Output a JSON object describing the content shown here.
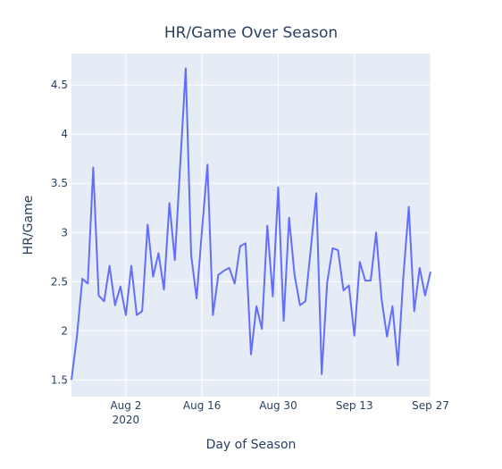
{
  "chart_data": {
    "type": "line",
    "title": "HR/Game Over Season",
    "xlabel": "Day of Season",
    "ylabel": "HR/Game",
    "xlim": [
      "2020-07-23",
      "2020-09-27"
    ],
    "ylim": [
      1.33,
      4.82
    ],
    "grid": true,
    "x_ticks": [
      {
        "date": "2020-08-02",
        "label": "Aug 2",
        "sublabel": "2020"
      },
      {
        "date": "2020-08-16",
        "label": "Aug 16",
        "sublabel": ""
      },
      {
        "date": "2020-08-30",
        "label": "Aug 30",
        "sublabel": ""
      },
      {
        "date": "2020-09-13",
        "label": "Sep 13",
        "sublabel": ""
      },
      {
        "date": "2020-09-27",
        "label": "Sep 27",
        "sublabel": ""
      }
    ],
    "y_ticks": [
      {
        "value": 1.5,
        "label": "1.5"
      },
      {
        "value": 2,
        "label": "2"
      },
      {
        "value": 2.5,
        "label": "2.5"
      },
      {
        "value": 3,
        "label": "3"
      },
      {
        "value": 3.5,
        "label": "3.5"
      },
      {
        "value": 4,
        "label": "4"
      },
      {
        "value": 4.5,
        "label": "4.5"
      }
    ],
    "series": [
      {
        "color": "#636efa",
        "x": [
          "2020-07-23",
          "2020-07-24",
          "2020-07-25",
          "2020-07-26",
          "2020-07-27",
          "2020-07-28",
          "2020-07-29",
          "2020-07-30",
          "2020-07-31",
          "2020-08-01",
          "2020-08-02",
          "2020-08-03",
          "2020-08-04",
          "2020-08-05",
          "2020-08-06",
          "2020-08-07",
          "2020-08-08",
          "2020-08-09",
          "2020-08-10",
          "2020-08-11",
          "2020-08-12",
          "2020-08-13",
          "2020-08-14",
          "2020-08-15",
          "2020-08-16",
          "2020-08-17",
          "2020-08-18",
          "2020-08-19",
          "2020-08-20",
          "2020-08-21",
          "2020-08-22",
          "2020-08-23",
          "2020-08-24",
          "2020-08-25",
          "2020-08-26",
          "2020-08-27",
          "2020-08-28",
          "2020-08-29",
          "2020-08-30",
          "2020-08-31",
          "2020-09-01",
          "2020-09-02",
          "2020-09-03",
          "2020-09-04",
          "2020-09-05",
          "2020-09-06",
          "2020-09-07",
          "2020-09-08",
          "2020-09-09",
          "2020-09-10",
          "2020-09-11",
          "2020-09-12",
          "2020-09-13",
          "2020-09-14",
          "2020-09-15",
          "2020-09-16",
          "2020-09-17",
          "2020-09-18",
          "2020-09-19",
          "2020-09-20",
          "2020-09-21",
          "2020-09-22",
          "2020-09-23",
          "2020-09-24",
          "2020-09-25",
          "2020-09-26",
          "2020-09-27"
        ],
        "values": [
          1.5,
          1.94,
          2.53,
          2.48,
          3.66,
          2.36,
          2.3,
          2.66,
          2.26,
          2.45,
          2.16,
          2.66,
          2.16,
          2.2,
          3.08,
          2.55,
          2.79,
          2.42,
          3.3,
          2.72,
          3.7,
          4.67,
          2.77,
          2.33,
          3.03,
          3.69,
          2.16,
          2.57,
          2.61,
          2.64,
          2.48,
          2.86,
          2.89,
          1.76,
          2.25,
          2.02,
          3.07,
          2.35,
          3.46,
          2.1,
          3.15,
          2.57,
          2.26,
          2.3,
          2.84,
          3.4,
          1.56,
          2.49,
          2.84,
          2.82,
          2.41,
          2.46,
          1.95,
          2.7,
          2.51,
          2.51,
          3.0,
          2.32,
          1.94,
          2.25,
          1.65,
          2.55,
          3.26,
          2.2,
          2.64,
          2.36,
          2.6
        ]
      }
    ]
  }
}
